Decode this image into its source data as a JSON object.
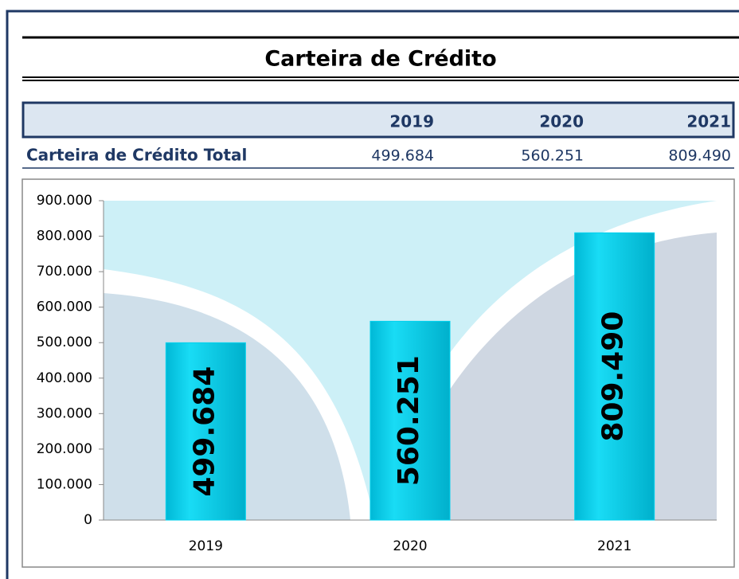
{
  "title": "Carteira de Crédito",
  "table": {
    "header": [
      "2019",
      "2020",
      "2021"
    ],
    "rows": [
      [
        "Carteira de Crédito Total",
        "499.684",
        "560.251",
        "809.490"
      ]
    ]
  },
  "chart_data": {
    "type": "bar",
    "categories": [
      "2019",
      "2020",
      "2021"
    ],
    "values": [
      499684,
      560251,
      809490
    ],
    "value_labels": [
      "499.684",
      "560.251",
      "809.490"
    ],
    "color": "#00d2ee",
    "ylim": [
      0,
      900000
    ],
    "yticks": [
      0,
      {
        "value": 100000,
        "label": "100.000"
      },
      {
        "value": 200000,
        "label": "200.000"
      },
      {
        "value": 300000,
        "label": "300.000"
      },
      {
        "value": 400000,
        "label": "400.000"
      },
      {
        "value": 500000,
        "label": "500.000"
      },
      {
        "value": 600000,
        "label": "600.000"
      },
      {
        "value": 700000,
        "label": "700.000"
      },
      {
        "value": 800000,
        "label": "800.000"
      },
      {
        "value": 900000,
        "label": "900.000"
      }
    ]
  }
}
